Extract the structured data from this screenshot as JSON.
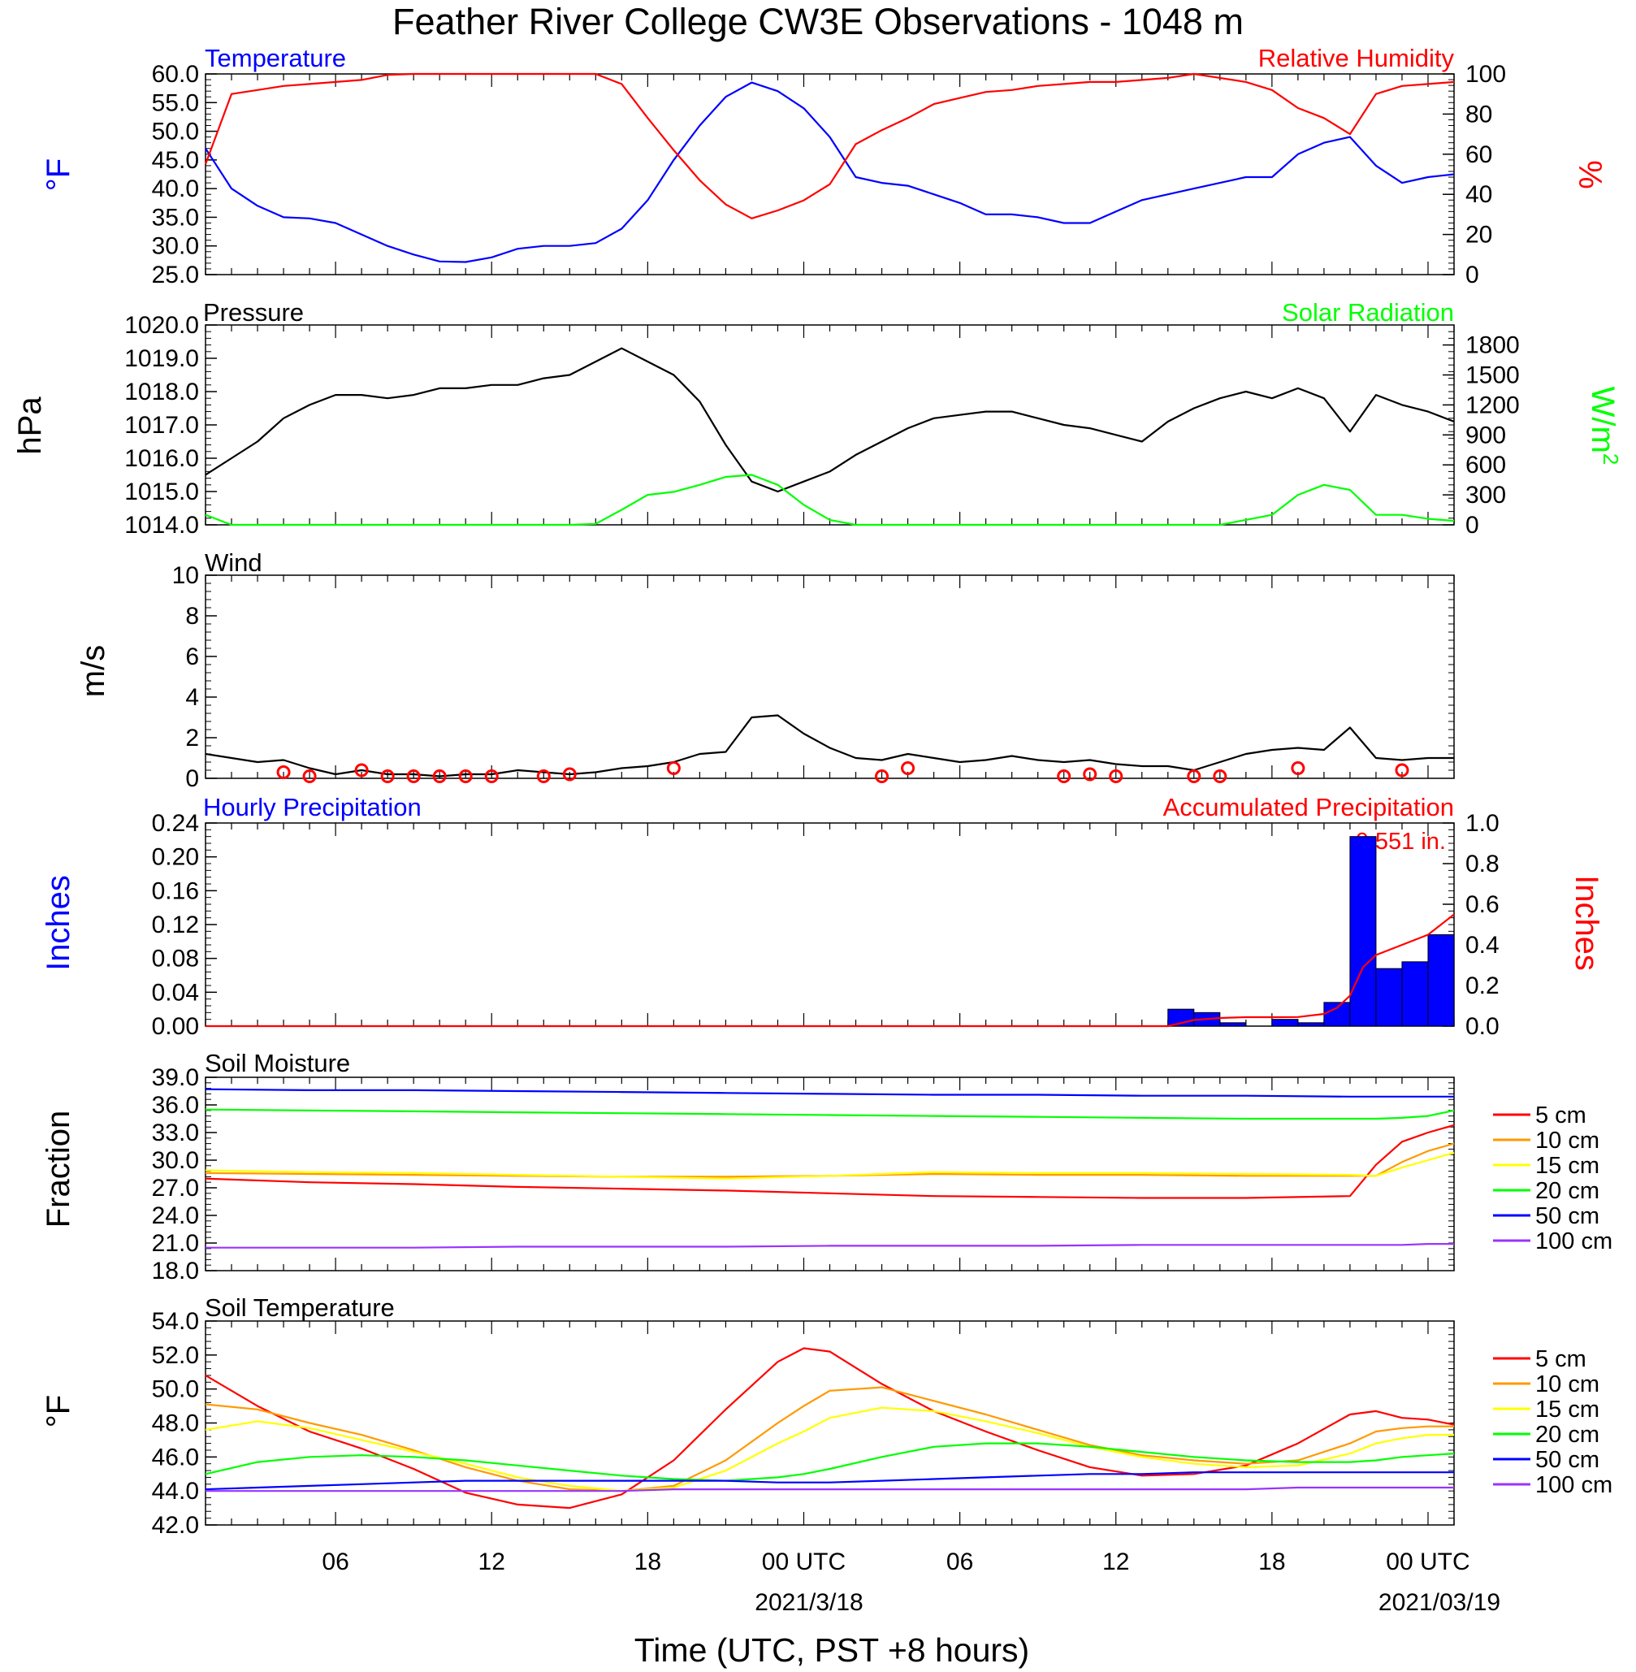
{
  "figure": {
    "title": "Feather River College CW3E Observations - 1048 m",
    "xlabel": "Time (UTC, PST +8 hours)"
  },
  "colors": {
    "blue": "#0000ff",
    "red": "#ff0000",
    "green": "#00ff00",
    "black": "#000000",
    "orange": "#ff9900",
    "yellow": "#ffff00",
    "bar_blue": "#0000ff",
    "purple": "#9933ff"
  },
  "chart_data": [
    {
      "id": "temp_rh",
      "type": "line",
      "title_left": "Temperature",
      "title_right": "Relative Humidity",
      "ylabel_left": "°F",
      "ylabel_right": "%",
      "x_hours": [
        0,
        1,
        2,
        3,
        4,
        5,
        6,
        7,
        8,
        9,
        10,
        11,
        12,
        13,
        14,
        15,
        16,
        17,
        18,
        19,
        20,
        21,
        22,
        23,
        24,
        25,
        26,
        27,
        28,
        29,
        30,
        31,
        32,
        33,
        34,
        35,
        36,
        37,
        38,
        39,
        40,
        41,
        42,
        43,
        44,
        45,
        46,
        47,
        48
      ],
      "ylim_left": [
        25,
        60
      ],
      "yticks_left": [
        "60.0",
        "55.0",
        "50.0",
        "45.0",
        "40.0",
        "35.0",
        "30.0",
        "25.0"
      ],
      "ylim_right": [
        0,
        100
      ],
      "yticks_right": [
        "100",
        "80",
        "60",
        "40",
        "20",
        "0"
      ],
      "series": [
        {
          "axis": "left",
          "color": "blue",
          "values": [
            47,
            40,
            37,
            35,
            34.8,
            34,
            32,
            30,
            28.5,
            27.3,
            27.2,
            28,
            29.5,
            30,
            30,
            30.5,
            33,
            38,
            45,
            51,
            56,
            58.5,
            57,
            54,
            49,
            42,
            41,
            40.5,
            39,
            37.5,
            35.5,
            35.5,
            35,
            34,
            34,
            36,
            38,
            39,
            40,
            41,
            42,
            42,
            46,
            48,
            49,
            44,
            41,
            42,
            42.5
          ]
        },
        {
          "axis": "right",
          "color": "red",
          "values": [
            55,
            90,
            92,
            94,
            95,
            96,
            97,
            99.5,
            100,
            100,
            100,
            100,
            100,
            100,
            100,
            100,
            95,
            78,
            62,
            47,
            35,
            28,
            32,
            37,
            45,
            65,
            72,
            78,
            85,
            88,
            91,
            92,
            94,
            95,
            96,
            96,
            97,
            98,
            100,
            98,
            96,
            92,
            83,
            78,
            70,
            90,
            94,
            95,
            96
          ]
        }
      ]
    },
    {
      "id": "pressure_solar",
      "type": "line",
      "title_left": "Pressure",
      "title_right": "Solar Radiation",
      "ylabel_left": "hPa",
      "ylabel_right": "W/m",
      "ylabel_right_sup": "2",
      "x_hours": [
        0,
        1,
        2,
        3,
        4,
        5,
        6,
        7,
        8,
        9,
        10,
        11,
        12,
        13,
        14,
        15,
        16,
        17,
        18,
        19,
        20,
        21,
        22,
        23,
        24,
        25,
        26,
        27,
        28,
        29,
        30,
        31,
        32,
        33,
        34,
        35,
        36,
        37,
        38,
        39,
        40,
        41,
        42,
        43,
        44,
        45,
        46,
        47,
        48
      ],
      "ylim_left": [
        1014,
        1020
      ],
      "yticks_left": [
        "1020.0",
        "1019.0",
        "1018.0",
        "1017.0",
        "1016.0",
        "1015.0",
        "1014.0"
      ],
      "ylim_right": [
        0,
        2000
      ],
      "yticks_right": [
        "1800",
        "1500",
        "1200",
        "900",
        "600",
        "300",
        "0"
      ],
      "series": [
        {
          "axis": "left",
          "color": "black",
          "values": [
            1015.5,
            1016,
            1016.5,
            1017.2,
            1017.6,
            1017.9,
            1017.9,
            1017.8,
            1017.9,
            1018.1,
            1018.1,
            1018.2,
            1018.2,
            1018.4,
            1018.5,
            1018.9,
            1019.3,
            1018.9,
            1018.5,
            1017.7,
            1016.4,
            1015.3,
            1015,
            1015.3,
            1015.6,
            1016.1,
            1016.5,
            1016.9,
            1017.2,
            1017.3,
            1017.4,
            1017.4,
            1017.2,
            1017,
            1016.9,
            1016.7,
            1016.5,
            1017.1,
            1017.5,
            1017.8,
            1018,
            1017.8,
            1018.1,
            1017.8,
            1016.8,
            1017.9,
            1017.6,
            1017.4,
            1017.1
          ]
        },
        {
          "axis": "right",
          "color": "green",
          "values": [
            100,
            0,
            0,
            0,
            0,
            0,
            0,
            0,
            0,
            0,
            0,
            0,
            0,
            0,
            0,
            10,
            150,
            300,
            330,
            400,
            480,
            500,
            400,
            200,
            50,
            0,
            0,
            0,
            0,
            0,
            0,
            0,
            0,
            0,
            0,
            0,
            0,
            0,
            0,
            0,
            50,
            100,
            300,
            400,
            350,
            100,
            100,
            60,
            40
          ]
        }
      ]
    },
    {
      "id": "wind",
      "type": "line",
      "title_left": "Wind",
      "ylabel_left": "m/s",
      "x_hours": [
        0,
        1,
        2,
        3,
        4,
        5,
        6,
        7,
        8,
        9,
        10,
        11,
        12,
        13,
        14,
        15,
        16,
        17,
        18,
        19,
        20,
        21,
        22,
        23,
        24,
        25,
        26,
        27,
        28,
        29,
        30,
        31,
        32,
        33,
        34,
        35,
        36,
        37,
        38,
        39,
        40,
        41,
        42,
        43,
        44,
        45,
        46,
        47,
        48
      ],
      "ylim_left": [
        0,
        10
      ],
      "yticks_left": [
        "10",
        "8",
        "6",
        "4",
        "2",
        "0"
      ],
      "series": [
        {
          "axis": "left",
          "color": "black",
          "values": [
            1.2,
            1,
            0.8,
            0.9,
            0.5,
            0.2,
            0.4,
            0.2,
            0.2,
            0.1,
            0.2,
            0.2,
            0.4,
            0.3,
            0.2,
            0.3,
            0.5,
            0.6,
            0.8,
            1.2,
            1.3,
            3,
            3.1,
            2.2,
            1.5,
            1,
            0.9,
            1.2,
            1,
            0.8,
            0.9,
            1.1,
            0.9,
            0.8,
            0.9,
            0.7,
            0.6,
            0.6,
            0.4,
            0.8,
            1.2,
            1.4,
            1.5,
            1.4,
            2.5,
            1,
            0.9,
            1,
            1
          ]
        }
      ],
      "calm_circles_hours": [
        3,
        4,
        6,
        7,
        8,
        9,
        10,
        11,
        13,
        14,
        18,
        26,
        27,
        33,
        34,
        35,
        38,
        39,
        42,
        46
      ],
      "calm_circles_values": [
        0.3,
        0.1,
        0.4,
        0.1,
        0.1,
        0.1,
        0.1,
        0.1,
        0.1,
        0.2,
        0.5,
        0.1,
        0.5,
        0.1,
        0.2,
        0.1,
        0.1,
        0.1,
        0.5,
        0.4
      ]
    },
    {
      "id": "precip",
      "type": "bar",
      "title_left": "Hourly Precipitation",
      "title_right": "Accumulated Precipitation",
      "annotation": "0.551 in.",
      "ylabel_left": "Inches",
      "ylabel_right": "Inches",
      "ylim_left": [
        0,
        0.24
      ],
      "yticks_left": [
        "0.24",
        "0.20",
        "0.16",
        "0.12",
        "0.08",
        "0.04",
        "0.00"
      ],
      "ylim_right": [
        0,
        1.0
      ],
      "yticks_right": [
        "1.0",
        "0.8",
        "0.6",
        "0.4",
        "0.2",
        "0.0"
      ],
      "bar_start_hours": [
        37,
        38,
        39,
        41,
        42,
        43,
        44,
        45,
        46,
        47
      ],
      "bar_values": [
        0.02,
        0.016,
        0.004,
        0.008,
        0.004,
        0.028,
        0.224,
        0.068,
        0.076,
        0.108
      ],
      "series": [
        {
          "axis": "right",
          "color": "red",
          "x_hours": [
            0,
            37,
            38,
            39,
            40,
            41,
            42,
            43,
            43.5,
            44,
            44.5,
            45,
            46,
            47,
            48
          ],
          "values": [
            0,
            0,
            0.03,
            0.04,
            0.044,
            0.044,
            0.045,
            0.06,
            0.09,
            0.15,
            0.29,
            0.35,
            0.4,
            0.45,
            0.55
          ]
        }
      ]
    },
    {
      "id": "soil_moisture",
      "type": "line",
      "title_left": "Soil Moisture",
      "ylabel_left": "Fraction",
      "x_hours": [
        0,
        4,
        8,
        12,
        16,
        20,
        24,
        28,
        32,
        36,
        40,
        44,
        45,
        46,
        47,
        48
      ],
      "ylim_left": [
        18,
        39
      ],
      "yticks_left": [
        "39.0",
        "36.0",
        "33.0",
        "30.0",
        "27.0",
        "24.0",
        "21.0",
        "18.0"
      ],
      "series": [
        {
          "name": "5 cm",
          "axis": "left",
          "color": "red",
          "values": [
            28.0,
            27.6,
            27.4,
            27.1,
            26.9,
            26.7,
            26.4,
            26.1,
            26.0,
            25.9,
            25.9,
            26.1,
            29.5,
            32.0,
            33.0,
            33.8
          ]
        },
        {
          "name": "10 cm",
          "axis": "left",
          "color": "orange",
          "values": [
            28.6,
            28.5,
            28.4,
            28.3,
            28.2,
            28.2,
            28.3,
            28.5,
            28.4,
            28.4,
            28.3,
            28.3,
            28.3,
            29.8,
            31.0,
            31.8
          ]
        },
        {
          "name": "15 cm",
          "axis": "left",
          "color": "yellow",
          "values": [
            28.9,
            28.7,
            28.6,
            28.4,
            28.2,
            28.0,
            28.3,
            28.7,
            28.6,
            28.6,
            28.5,
            28.4,
            28.3,
            29.2,
            30.0,
            30.8
          ]
        },
        {
          "name": "20 cm",
          "axis": "left",
          "color": "green",
          "values": [
            35.5,
            35.4,
            35.3,
            35.2,
            35.1,
            35.0,
            34.9,
            34.8,
            34.7,
            34.6,
            34.5,
            34.5,
            34.5,
            34.6,
            34.8,
            35.4
          ]
        },
        {
          "name": "50 cm",
          "axis": "left",
          "color": "blue",
          "values": [
            37.7,
            37.6,
            37.6,
            37.5,
            37.4,
            37.3,
            37.2,
            37.1,
            37.1,
            37.0,
            37.0,
            36.9,
            36.9,
            36.9,
            36.9,
            36.9
          ]
        },
        {
          "name": "100 cm",
          "axis": "left",
          "color": "purple",
          "values": [
            20.5,
            20.5,
            20.5,
            20.6,
            20.6,
            20.6,
            20.7,
            20.7,
            20.7,
            20.8,
            20.8,
            20.8,
            20.8,
            20.8,
            20.9,
            20.9
          ]
        }
      ]
    },
    {
      "id": "soil_temp",
      "type": "line",
      "title_left": "Soil Temperature",
      "ylabel_left": "°F",
      "x_hours": [
        0,
        2,
        4,
        6,
        8,
        10,
        12,
        14,
        16,
        18,
        20,
        22,
        23,
        24,
        26,
        28,
        30,
        32,
        34,
        36,
        38,
        40,
        42,
        44,
        45,
        46,
        47,
        48
      ],
      "ylim_left": [
        42,
        54
      ],
      "yticks_left": [
        "54.0",
        "52.0",
        "50.0",
        "48.0",
        "46.0",
        "44.0",
        "42.0"
      ],
      "series": [
        {
          "name": "5 cm",
          "axis": "left",
          "color": "red",
          "values": [
            50.8,
            49.0,
            47.5,
            46.5,
            45.3,
            43.9,
            43.2,
            43.0,
            43.8,
            45.8,
            48.8,
            51.6,
            52.4,
            52.2,
            50.3,
            48.7,
            47.5,
            46.4,
            45.4,
            44.9,
            45.0,
            45.5,
            46.8,
            48.5,
            48.7,
            48.3,
            48.2,
            47.9
          ]
        },
        {
          "name": "10 cm",
          "axis": "left",
          "color": "orange",
          "values": [
            49.1,
            48.8,
            48.0,
            47.3,
            46.4,
            45.4,
            44.6,
            44.1,
            44.0,
            44.3,
            45.8,
            48.0,
            49.0,
            49.9,
            50.1,
            49.3,
            48.5,
            47.6,
            46.7,
            46.1,
            45.8,
            45.6,
            45.8,
            46.8,
            47.5,
            47.7,
            47.8,
            47.8
          ]
        },
        {
          "name": "15 cm",
          "axis": "left",
          "color": "yellow",
          "values": [
            47.6,
            48.1,
            47.7,
            47.0,
            46.3,
            45.6,
            44.8,
            44.3,
            44.0,
            44.2,
            45.2,
            46.8,
            47.5,
            48.3,
            48.9,
            48.7,
            48.1,
            47.4,
            46.6,
            46.0,
            45.6,
            45.4,
            45.5,
            46.2,
            46.8,
            47.1,
            47.3,
            47.3
          ]
        },
        {
          "name": "20 cm",
          "axis": "left",
          "color": "green",
          "values": [
            45.0,
            45.7,
            46.0,
            46.1,
            46.0,
            45.8,
            45.5,
            45.2,
            44.9,
            44.7,
            44.6,
            44.8,
            45.0,
            45.3,
            46.0,
            46.6,
            46.8,
            46.8,
            46.6,
            46.3,
            46.0,
            45.8,
            45.7,
            45.7,
            45.8,
            46.0,
            46.1,
            46.2
          ]
        },
        {
          "name": "50 cm",
          "axis": "left",
          "color": "blue",
          "values": [
            44.1,
            44.2,
            44.3,
            44.4,
            44.5,
            44.6,
            44.6,
            44.6,
            44.6,
            44.6,
            44.6,
            44.5,
            44.5,
            44.5,
            44.6,
            44.7,
            44.8,
            44.9,
            45.0,
            45.0,
            45.1,
            45.1,
            45.1,
            45.1,
            45.1,
            45.1,
            45.1,
            45.1
          ]
        },
        {
          "name": "100 cm",
          "axis": "left",
          "color": "purple",
          "values": [
            44.0,
            44.0,
            44.0,
            44.0,
            44.0,
            44.0,
            44.0,
            44.0,
            44.0,
            44.1,
            44.1,
            44.1,
            44.1,
            44.1,
            44.1,
            44.1,
            44.1,
            44.1,
            44.1,
            44.1,
            44.1,
            44.1,
            44.2,
            44.2,
            44.2,
            44.2,
            44.2,
            44.2
          ]
        }
      ]
    }
  ],
  "x_axis": {
    "range_hours": [
      0,
      48
    ],
    "tick_hours": [
      5,
      11,
      17,
      23,
      29,
      35,
      41,
      47
    ],
    "tick_labels": [
      "06",
      "12",
      "18",
      "00 UTC",
      "06",
      "12",
      "18",
      "00 UTC"
    ],
    "date_labels": [
      "2021/3/18",
      "2021/03/19"
    ]
  }
}
